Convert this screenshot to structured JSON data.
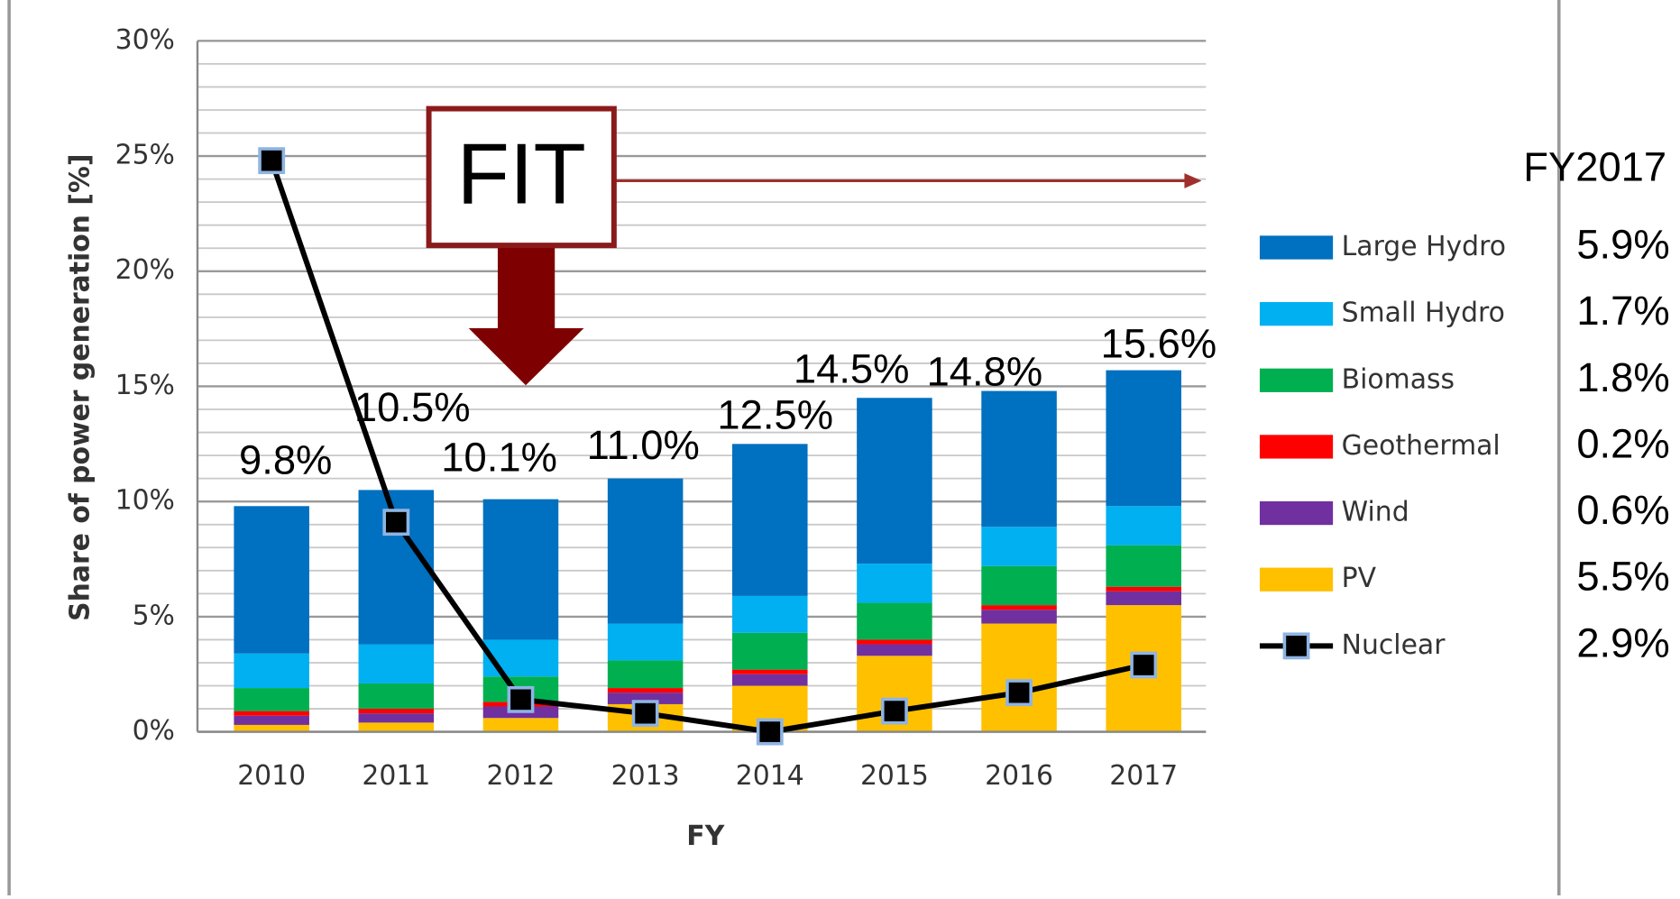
{
  "chart_data": {
    "type": "bar",
    "stacked": true,
    "categories": [
      "2010",
      "2011",
      "2012",
      "2013",
      "2014",
      "2015",
      "2016",
      "2017"
    ],
    "series": [
      {
        "name": "Large Hydro",
        "color": "#0070c0",
        "values": [
          6.4,
          6.7,
          6.1,
          6.3,
          6.6,
          7.2,
          5.9,
          5.9
        ]
      },
      {
        "name": "Small Hydro",
        "color": "#00b0f0",
        "values": [
          1.5,
          1.7,
          1.6,
          1.6,
          1.6,
          1.7,
          1.7,
          1.7
        ]
      },
      {
        "name": "Biomass",
        "color": "#00b050",
        "values": [
          1.0,
          1.1,
          1.1,
          1.2,
          1.6,
          1.6,
          1.7,
          1.8
        ]
      },
      {
        "name": "Geothermal",
        "color": "#ff0000",
        "values": [
          0.2,
          0.2,
          0.2,
          0.2,
          0.2,
          0.2,
          0.2,
          0.2
        ]
      },
      {
        "name": "Wind",
        "color": "#7030a0",
        "values": [
          0.4,
          0.4,
          0.5,
          0.5,
          0.5,
          0.5,
          0.6,
          0.6
        ]
      },
      {
        "name": "PV",
        "color": "#ffc000",
        "values": [
          0.3,
          0.4,
          0.6,
          1.2,
          2.0,
          3.3,
          4.7,
          5.5
        ]
      },
      {
        "name": "Nuclear",
        "type": "line",
        "color": "#000000",
        "marker_color": "#8eb4e3",
        "values": [
          24.8,
          9.1,
          1.4,
          0.8,
          0.0,
          0.9,
          1.7,
          2.9
        ]
      }
    ],
    "total_labels": [
      "9.8%",
      "10.5%",
      "10.1%",
      "11.0%",
      "12.5%",
      "14.5%",
      "14.8%",
      "15.6%"
    ],
    "y_label": "Share of power generation [%]",
    "x_label": "FY",
    "ylim": [
      0,
      30
    ],
    "yticks": [
      {
        "value": 0,
        "label": "0%"
      },
      {
        "value": 5,
        "label": "5%"
      },
      {
        "value": 10,
        "label": "10%"
      },
      {
        "value": 15,
        "label": "15%"
      },
      {
        "value": 20,
        "label": "20%"
      },
      {
        "value": 25,
        "label": "25%"
      },
      {
        "value": 30,
        "label": "30%"
      }
    ],
    "grid": true,
    "annotation": "FIT",
    "side_panel": {
      "title": "FY2017",
      "values": [
        "5.9%",
        "1.7%",
        "1.8%",
        "0.2%",
        "0.6%",
        "5.5%",
        "2.9%"
      ]
    }
  }
}
